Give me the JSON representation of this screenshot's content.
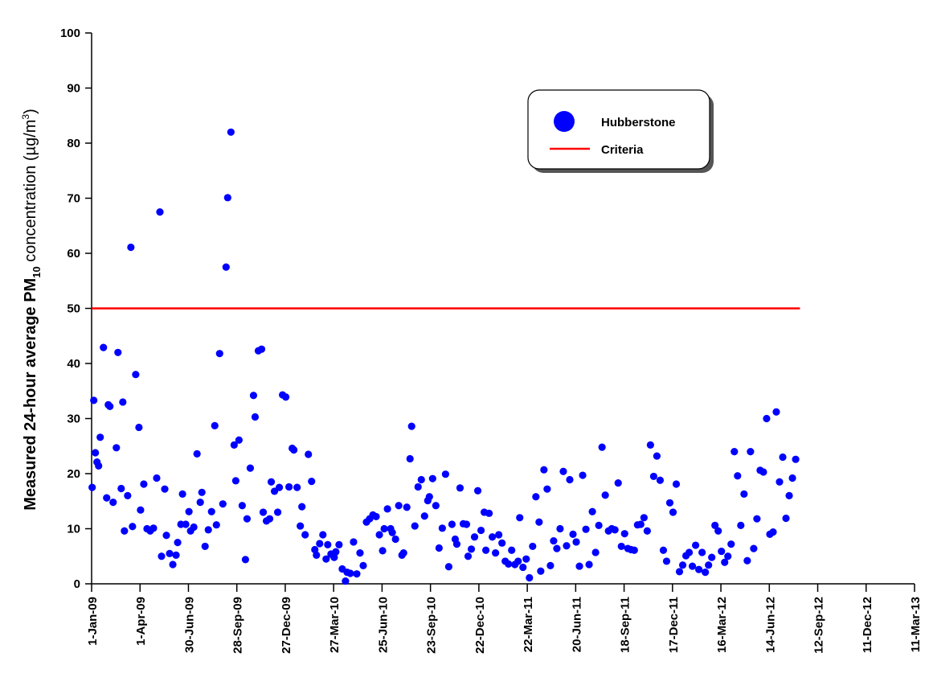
{
  "chart_data": {
    "type": "scatter",
    "ylabel_main": "Measured 24-hour average PM",
    "ylabel_sub": "10",
    "ylabel_rest": " concentration (",
    "ylabel_mu": "µ",
    "ylabel_unit": "g/m",
    "ylabel_sup": "3",
    "ylabel_close": ")",
    "xlabel": "",
    "ylim": [
      0,
      100
    ],
    "yticks": [
      0,
      10,
      20,
      30,
      40,
      50,
      60,
      70,
      80,
      90,
      100
    ],
    "xlim": [
      "2009-01-01",
      "2013-03-11"
    ],
    "xticks": [
      "2009-01-01",
      "2009-04-01",
      "2009-06-30",
      "2009-09-28",
      "2009-12-27",
      "2010-03-27",
      "2010-06-25",
      "2010-09-23",
      "2010-12-22",
      "2011-03-22",
      "2011-06-20",
      "2011-09-18",
      "2011-12-17",
      "2012-03-16",
      "2012-06-14",
      "2012-09-12",
      "2012-12-11",
      "2013-03-11"
    ],
    "xtick_labels": [
      "1-Jan-09",
      "1-Apr-09",
      "30-Jun-09",
      "28-Sep-09",
      "27-Dec-09",
      "27-Mar-10",
      "25-Jun-10",
      "23-Sep-10",
      "22-Dec-10",
      "22-Mar-11",
      "20-Jun-11",
      "18-Sep-11",
      "17-Dec-11",
      "16-Mar-12",
      "14-Jun-12",
      "12-Sep-12",
      "11-Dec-12",
      "11-Mar-13"
    ],
    "grid": false,
    "legend_position": "top-right",
    "series": [
      {
        "name": "Hubberstone",
        "color": "#0000ff",
        "points": [
          [
            "2009-01-02",
            17.5
          ],
          [
            "2009-01-05",
            33.3
          ],
          [
            "2009-01-08",
            23.8
          ],
          [
            "2009-01-11",
            22.1
          ],
          [
            "2009-01-14",
            21.4
          ],
          [
            "2009-01-17",
            26.6
          ],
          [
            "2009-01-23",
            42.9
          ],
          [
            "2009-01-29",
            15.6
          ],
          [
            "2009-02-01",
            32.5
          ],
          [
            "2009-02-04",
            32.2
          ],
          [
            "2009-02-10",
            14.8
          ],
          [
            "2009-02-16",
            24.7
          ],
          [
            "2009-02-19",
            42.0
          ],
          [
            "2009-02-25",
            17.3
          ],
          [
            "2009-02-28",
            33.0
          ],
          [
            "2009-03-03",
            9.6
          ],
          [
            "2009-03-09",
            16.0
          ],
          [
            "2009-03-15",
            61.1
          ],
          [
            "2009-03-18",
            10.4
          ],
          [
            "2009-03-24",
            38.0
          ],
          [
            "2009-03-30",
            28.4
          ],
          [
            "2009-04-02",
            13.4
          ],
          [
            "2009-04-08",
            18.1
          ],
          [
            "2009-04-14",
            10.0
          ],
          [
            "2009-04-20",
            9.6
          ],
          [
            "2009-04-26",
            10.1
          ],
          [
            "2009-05-02",
            19.2
          ],
          [
            "2009-05-08",
            67.5
          ],
          [
            "2009-05-11",
            5.0
          ],
          [
            "2009-05-17",
            17.2
          ],
          [
            "2009-05-20",
            8.8
          ],
          [
            "2009-05-26",
            5.5
          ],
          [
            "2009-06-01",
            3.5
          ],
          [
            "2009-06-07",
            5.2
          ],
          [
            "2009-06-10",
            7.5
          ],
          [
            "2009-06-16",
            10.8
          ],
          [
            "2009-06-19",
            16.3
          ],
          [
            "2009-06-25",
            10.8
          ],
          [
            "2009-07-01",
            13.1
          ],
          [
            "2009-07-04",
            9.6
          ],
          [
            "2009-07-10",
            10.3
          ],
          [
            "2009-07-16",
            23.6
          ],
          [
            "2009-07-22",
            14.8
          ],
          [
            "2009-07-25",
            16.6
          ],
          [
            "2009-07-31",
            6.8
          ],
          [
            "2009-08-06",
            9.8
          ],
          [
            "2009-08-12",
            13.1
          ],
          [
            "2009-08-18",
            28.7
          ],
          [
            "2009-08-21",
            10.7
          ],
          [
            "2009-08-27",
            41.8
          ],
          [
            "2009-09-02",
            14.5
          ],
          [
            "2009-09-08",
            57.5
          ],
          [
            "2009-09-11",
            70.1
          ],
          [
            "2009-09-17",
            82.0
          ],
          [
            "2009-09-23",
            25.2
          ],
          [
            "2009-09-26",
            18.7
          ],
          [
            "2009-10-02",
            26.1
          ],
          [
            "2009-10-08",
            14.2
          ],
          [
            "2009-10-14",
            4.4
          ],
          [
            "2009-10-17",
            11.8
          ],
          [
            "2009-10-23",
            21.0
          ],
          [
            "2009-10-29",
            34.2
          ],
          [
            "2009-11-01",
            30.3
          ],
          [
            "2009-11-07",
            42.3
          ],
          [
            "2009-11-13",
            42.6
          ],
          [
            "2009-11-16",
            13.0
          ],
          [
            "2009-11-22",
            11.4
          ],
          [
            "2009-11-28",
            11.8
          ],
          [
            "2009-12-01",
            18.5
          ],
          [
            "2009-12-07",
            16.8
          ],
          [
            "2009-12-13",
            13.0
          ],
          [
            "2009-12-16",
            17.5
          ],
          [
            "2009-12-22",
            34.3
          ],
          [
            "2009-12-28",
            33.9
          ],
          [
            "2010-01-03",
            17.6
          ],
          [
            "2010-01-09",
            24.6
          ],
          [
            "2010-01-12",
            24.3
          ],
          [
            "2010-01-18",
            17.5
          ],
          [
            "2010-01-24",
            10.5
          ],
          [
            "2010-01-27",
            14.0
          ],
          [
            "2010-02-02",
            8.9
          ],
          [
            "2010-02-08",
            23.5
          ],
          [
            "2010-02-14",
            18.6
          ],
          [
            "2010-02-20",
            6.2
          ],
          [
            "2010-02-23",
            5.2
          ],
          [
            "2010-03-01",
            7.3
          ],
          [
            "2010-03-07",
            8.9
          ],
          [
            "2010-03-13",
            4.5
          ],
          [
            "2010-03-16",
            7.1
          ],
          [
            "2010-03-22",
            5.4
          ],
          [
            "2010-03-28",
            4.8
          ],
          [
            "2010-03-31",
            5.8
          ],
          [
            "2010-04-06",
            7.1
          ],
          [
            "2010-04-12",
            2.7
          ],
          [
            "2010-04-18",
            0.5
          ],
          [
            "2010-04-21",
            2.1
          ],
          [
            "2010-04-27",
            1.9
          ],
          [
            "2010-05-03",
            7.6
          ],
          [
            "2010-05-09",
            1.8
          ],
          [
            "2010-05-15",
            5.6
          ],
          [
            "2010-05-21",
            3.3
          ],
          [
            "2010-05-27",
            11.2
          ],
          [
            "2010-06-02",
            11.8
          ],
          [
            "2010-06-08",
            12.5
          ],
          [
            "2010-06-14",
            12.2
          ],
          [
            "2010-06-20",
            8.9
          ],
          [
            "2010-06-26",
            6.0
          ],
          [
            "2010-06-29",
            10.0
          ],
          [
            "2010-07-05",
            13.6
          ],
          [
            "2010-07-11",
            10.0
          ],
          [
            "2010-07-14",
            9.3
          ],
          [
            "2010-07-20",
            8.1
          ],
          [
            "2010-07-26",
            14.2
          ],
          [
            "2010-08-01",
            5.2
          ],
          [
            "2010-08-04",
            5.6
          ],
          [
            "2010-08-10",
            13.9
          ],
          [
            "2010-08-16",
            22.7
          ],
          [
            "2010-08-19",
            28.6
          ],
          [
            "2010-08-25",
            10.5
          ],
          [
            "2010-08-31",
            17.6
          ],
          [
            "2010-09-06",
            18.9
          ],
          [
            "2010-09-12",
            12.3
          ],
          [
            "2010-09-18",
            15.1
          ],
          [
            "2010-09-21",
            15.8
          ],
          [
            "2010-09-27",
            19.1
          ],
          [
            "2010-10-03",
            14.2
          ],
          [
            "2010-10-09",
            6.5
          ],
          [
            "2010-10-15",
            10.1
          ],
          [
            "2010-10-21",
            19.9
          ],
          [
            "2010-10-27",
            3.1
          ],
          [
            "2010-11-02",
            10.8
          ],
          [
            "2010-11-08",
            8.1
          ],
          [
            "2010-11-11",
            7.2
          ],
          [
            "2010-11-17",
            17.4
          ],
          [
            "2010-11-23",
            10.9
          ],
          [
            "2010-11-29",
            10.8
          ],
          [
            "2010-12-02",
            5.0
          ],
          [
            "2010-12-08",
            6.3
          ],
          [
            "2010-12-14",
            8.5
          ],
          [
            "2010-12-20",
            16.9
          ],
          [
            "2010-12-26",
            9.7
          ],
          [
            "2011-01-01",
            13.0
          ],
          [
            "2011-01-04",
            6.1
          ],
          [
            "2011-01-10",
            12.8
          ],
          [
            "2011-01-16",
            8.5
          ],
          [
            "2011-01-22",
            5.6
          ],
          [
            "2011-01-28",
            8.9
          ],
          [
            "2011-02-03",
            7.4
          ],
          [
            "2011-02-09",
            4.1
          ],
          [
            "2011-02-15",
            3.6
          ],
          [
            "2011-02-21",
            6.1
          ],
          [
            "2011-02-27",
            3.5
          ],
          [
            "2011-03-05",
            4.1
          ],
          [
            "2011-03-08",
            12.0
          ],
          [
            "2011-03-14",
            3.0
          ],
          [
            "2011-03-20",
            4.5
          ],
          [
            "2011-03-26",
            1.1
          ],
          [
            "2011-04-01",
            6.8
          ],
          [
            "2011-04-07",
            15.8
          ],
          [
            "2011-04-13",
            11.2
          ],
          [
            "2011-04-16",
            2.3
          ],
          [
            "2011-04-22",
            20.7
          ],
          [
            "2011-04-28",
            17.2
          ],
          [
            "2011-05-04",
            3.3
          ],
          [
            "2011-05-10",
            7.8
          ],
          [
            "2011-05-16",
            6.4
          ],
          [
            "2011-05-22",
            10.0
          ],
          [
            "2011-05-28",
            20.4
          ],
          [
            "2011-06-03",
            6.9
          ],
          [
            "2011-06-09",
            18.9
          ],
          [
            "2011-06-15",
            9.0
          ],
          [
            "2011-06-21",
            7.6
          ],
          [
            "2011-06-27",
            3.2
          ],
          [
            "2011-07-03",
            19.7
          ],
          [
            "2011-07-09",
            9.9
          ],
          [
            "2011-07-15",
            3.5
          ],
          [
            "2011-07-21",
            13.1
          ],
          [
            "2011-07-27",
            5.7
          ],
          [
            "2011-08-02",
            10.6
          ],
          [
            "2011-08-08",
            24.8
          ],
          [
            "2011-08-14",
            16.1
          ],
          [
            "2011-08-20",
            9.6
          ],
          [
            "2011-08-26",
            10.0
          ],
          [
            "2011-09-01",
            9.8
          ],
          [
            "2011-09-07",
            18.3
          ],
          [
            "2011-09-13",
            6.8
          ],
          [
            "2011-09-19",
            9.1
          ],
          [
            "2011-09-25",
            6.4
          ],
          [
            "2011-10-01",
            6.2
          ],
          [
            "2011-10-07",
            6.1
          ],
          [
            "2011-10-13",
            10.7
          ],
          [
            "2011-10-19",
            10.8
          ],
          [
            "2011-10-25",
            12.0
          ],
          [
            "2011-10-31",
            9.6
          ],
          [
            "2011-11-06",
            25.2
          ],
          [
            "2011-11-12",
            19.5
          ],
          [
            "2011-11-18",
            23.2
          ],
          [
            "2011-11-24",
            18.8
          ],
          [
            "2011-11-30",
            6.1
          ],
          [
            "2011-12-06",
            4.1
          ],
          [
            "2011-12-12",
            14.7
          ],
          [
            "2011-12-18",
            13.0
          ],
          [
            "2011-12-24",
            18.1
          ],
          [
            "2011-12-30",
            2.2
          ],
          [
            "2012-01-05",
            3.4
          ],
          [
            "2012-01-11",
            5.1
          ],
          [
            "2012-01-17",
            5.7
          ],
          [
            "2012-01-23",
            3.2
          ],
          [
            "2012-01-29",
            7.0
          ],
          [
            "2012-02-04",
            2.6
          ],
          [
            "2012-02-10",
            5.7
          ],
          [
            "2012-02-16",
            2.1
          ],
          [
            "2012-02-22",
            3.4
          ],
          [
            "2012-02-28",
            4.8
          ],
          [
            "2012-03-05",
            10.6
          ],
          [
            "2012-03-11",
            9.6
          ],
          [
            "2012-03-17",
            5.9
          ],
          [
            "2012-03-23",
            3.9
          ],
          [
            "2012-03-29",
            5.0
          ],
          [
            "2012-04-04",
            7.2
          ],
          [
            "2012-04-10",
            24.0
          ],
          [
            "2012-04-16",
            19.6
          ],
          [
            "2012-04-22",
            10.6
          ],
          [
            "2012-04-28",
            16.3
          ],
          [
            "2012-05-04",
            4.2
          ],
          [
            "2012-05-10",
            24.0
          ],
          [
            "2012-05-16",
            6.4
          ],
          [
            "2012-05-22",
            11.8
          ],
          [
            "2012-05-28",
            20.6
          ],
          [
            "2012-06-03",
            20.3
          ],
          [
            "2012-06-09",
            30.0
          ],
          [
            "2012-06-15",
            9.0
          ],
          [
            "2012-06-21",
            9.4
          ],
          [
            "2012-06-27",
            31.2
          ],
          [
            "2012-07-03",
            18.5
          ],
          [
            "2012-07-09",
            23.0
          ],
          [
            "2012-07-15",
            11.9
          ],
          [
            "2012-07-21",
            16.0
          ],
          [
            "2012-07-27",
            19.2
          ],
          [
            "2012-08-02",
            22.6
          ]
        ]
      },
      {
        "name": "Criteria",
        "color": "#ff0000",
        "line": [
          [
            "2009-01-01",
            50
          ],
          [
            "2012-08-10",
            50
          ]
        ]
      }
    ]
  }
}
